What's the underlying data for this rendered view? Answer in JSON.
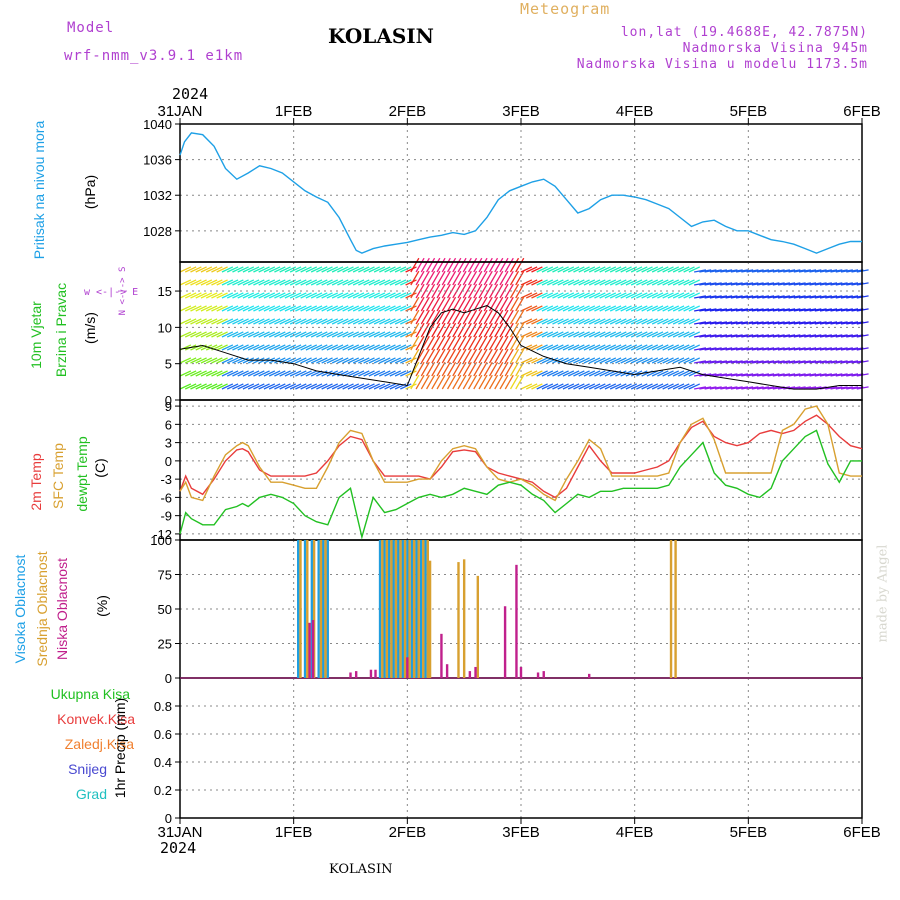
{
  "header": {
    "model_label": "Model",
    "model_name": "wrf-nmm_v3.9.1 e1km",
    "title": "KOLASIN",
    "meteogram": "Meteogram",
    "lonlat": "lon,lat (19.4688E, 42.7875N)",
    "elevation": "Nadmorska Visina 945m",
    "model_elevation": "Nadmorska Visina u modelu 1173.5m",
    "credit": "made by Angel"
  },
  "footer": {
    "station": "KOLASIN"
  },
  "colors": {
    "pressure": "#1ea0e6",
    "temp2m": "#e83c3c",
    "sfc_temp": "#d8a030",
    "dewpt": "#22c022",
    "high_cloud": "#1e9ee0",
    "mid_cloud": "#d8a030",
    "low_cloud": "#c0208c",
    "total_precip": "#22c022",
    "conv_precip": "#e83c3c",
    "frozen_precip": "#f08030",
    "snow": "#4848d0",
    "graupel": "#20c0c0",
    "model": "#b040d0",
    "meteogram": "#e0b060"
  },
  "time_axis": {
    "year": "2024",
    "labels": [
      "31JAN",
      "1FEB",
      "2FEB",
      "3FEB",
      "4FEB",
      "5FEB",
      "6FEB"
    ]
  },
  "panels": {
    "pressure": {
      "label": "Pritisak na nivou mora",
      "unit": "(hPa)"
    },
    "wind": {
      "label1": "10m Vjetar",
      "label2": "Brzina i Pravac",
      "unit": "(m/s)",
      "dir_labels": "w <-|-> E",
      "dir_vert": "N <-|-> S"
    },
    "temp": {
      "label1": "2m Temp",
      "label2": "SFC Temp",
      "label3": "dewpt Temp",
      "unit": "(C)"
    },
    "cloud": {
      "label1": "Visoka Oblacnost",
      "label2": "Srednja Oblacnost",
      "label3": "Niska Oblacnost",
      "unit": "(%)"
    },
    "precip": {
      "unit": "1hr Precip (mm)",
      "legend": [
        "Ukupna Kisa",
        "Konvek.Kisa",
        "Zaledj.Kisa",
        "Snijeg",
        "Grad"
      ]
    }
  },
  "chart_data": [
    {
      "type": "line",
      "name_key": "pressure",
      "ylim": [
        1024.5,
        1040
      ],
      "yticks": [
        1028,
        1032,
        1036,
        1040
      ],
      "x_days": [
        0,
        0.04,
        0.1,
        0.2,
        0.3,
        0.4,
        0.5,
        0.6,
        0.7,
        0.8,
        0.9,
        1.0,
        1.1,
        1.2,
        1.3,
        1.4,
        1.5,
        1.55,
        1.6,
        1.7,
        1.8,
        1.9,
        2.0,
        2.1,
        2.2,
        2.3,
        2.4,
        2.5,
        2.6,
        2.7,
        2.8,
        2.9,
        3.0,
        3.1,
        3.2,
        3.3,
        3.4,
        3.5,
        3.6,
        3.7,
        3.8,
        3.9,
        4.0,
        4.1,
        4.2,
        4.3,
        4.4,
        4.5,
        4.6,
        4.7,
        4.8,
        4.9,
        5.0,
        5.1,
        5.2,
        5.3,
        5.4,
        5.5,
        5.6,
        5.7,
        5.8,
        5.9,
        6.0
      ],
      "series": [
        {
          "values": [
            1036.5,
            1038.0,
            1039.0,
            1038.8,
            1037.5,
            1035.0,
            1033.8,
            1034.5,
            1035.3,
            1035.0,
            1034.5,
            1033.5,
            1032.5,
            1031.8,
            1031.2,
            1029.5,
            1027.0,
            1025.8,
            1025.5,
            1026.0,
            1026.3,
            1026.5,
            1026.7,
            1027.0,
            1027.3,
            1027.5,
            1027.8,
            1027.6,
            1028.0,
            1029.5,
            1031.5,
            1032.5,
            1033.0,
            1033.5,
            1033.8,
            1033.0,
            1031.5,
            1030.0,
            1030.5,
            1031.5,
            1032.0,
            1032.0,
            1031.8,
            1031.5,
            1031.0,
            1030.5,
            1029.5,
            1028.5,
            1029.0,
            1029.2,
            1028.5,
            1028.0,
            1028.0,
            1027.5,
            1027.0,
            1026.8,
            1026.5,
            1026.0,
            1025.5,
            1026.0,
            1026.5,
            1026.8,
            1026.8
          ]
        }
      ]
    },
    {
      "type": "line",
      "name_key": "wind_speed",
      "ylim": [
        0,
        19
      ],
      "yticks": [
        0,
        5,
        10,
        15
      ],
      "x_days": [
        0,
        0.2,
        0.4,
        0.6,
        0.8,
        1.0,
        1.2,
        1.4,
        1.6,
        1.8,
        2.0,
        2.1,
        2.2,
        2.3,
        2.4,
        2.5,
        2.6,
        2.7,
        2.8,
        2.9,
        3.0,
        3.2,
        3.4,
        3.6,
        3.8,
        4.0,
        4.2,
        4.4,
        4.6,
        4.8,
        5.0,
        5.2,
        5.4,
        5.6,
        5.8,
        6.0
      ],
      "series": [
        {
          "values": [
            7,
            7.5,
            6.5,
            5.5,
            5.5,
            5,
            4,
            3.5,
            3,
            2.5,
            2,
            6,
            10,
            12,
            12.5,
            12,
            12.5,
            13,
            12,
            10,
            7.5,
            6,
            5,
            4.5,
            4,
            3.5,
            4,
            4.5,
            3.5,
            3,
            2.5,
            2,
            1.5,
            1.5,
            2,
            2
          ]
        }
      ]
    },
    {
      "type": "line",
      "name_key": "temperature",
      "ylim": [
        -13,
        10
      ],
      "yticks": [
        -12,
        -9,
        -6,
        -3,
        0,
        3,
        6,
        9
      ],
      "x_days": [
        0,
        0.05,
        0.1,
        0.2,
        0.3,
        0.4,
        0.5,
        0.55,
        0.6,
        0.7,
        0.8,
        0.9,
        1.0,
        1.1,
        1.2,
        1.3,
        1.4,
        1.5,
        1.6,
        1.7,
        1.8,
        1.9,
        2.0,
        2.1,
        2.2,
        2.3,
        2.4,
        2.5,
        2.6,
        2.7,
        2.8,
        2.9,
        3.0,
        3.1,
        3.2,
        3.3,
        3.4,
        3.5,
        3.6,
        3.7,
        3.8,
        3.9,
        4.0,
        4.1,
        4.2,
        4.3,
        4.4,
        4.5,
        4.6,
        4.7,
        4.8,
        4.9,
        5.0,
        5.1,
        5.2,
        5.3,
        5.4,
        5.5,
        5.6,
        5.7,
        5.8,
        5.9,
        6.0
      ],
      "series": [
        {
          "name_key": "temp2m",
          "values": [
            -5,
            -2.5,
            -4.5,
            -5.5,
            -3,
            0,
            1.8,
            2,
            1.5,
            -1.5,
            -2.5,
            -2.5,
            -2.5,
            -2.5,
            -2,
            0,
            2.5,
            4,
            3.5,
            0,
            -2.5,
            -2.5,
            -2.5,
            -2.5,
            -3,
            -1,
            1.5,
            1.8,
            1.5,
            -1,
            -2,
            -2.5,
            -3,
            -3.5,
            -5,
            -6,
            -4.5,
            -1,
            2.5,
            0,
            -2,
            -2,
            -2,
            -1.5,
            -1,
            0,
            3,
            5.5,
            6.5,
            4,
            3,
            2.5,
            3,
            4.5,
            5,
            4.5,
            5,
            6.5,
            7.5,
            6,
            4,
            2.5,
            2
          ]
        },
        {
          "name_key": "sfc_temp",
          "values": [
            -5,
            -3.5,
            -6,
            -6.5,
            -2.5,
            1,
            2.5,
            3,
            2.5,
            -1,
            -3.5,
            -3.5,
            -4,
            -4.5,
            -4.5,
            -1,
            3,
            5,
            4.5,
            0,
            -3.5,
            -3.5,
            -3.5,
            -3,
            -3,
            0,
            2,
            2.5,
            2,
            -1,
            -3,
            -3.5,
            -3,
            -4,
            -5.5,
            -6.5,
            -3,
            0,
            3.5,
            2,
            -2.5,
            -2.5,
            -2.5,
            -2.5,
            -2.5,
            -2,
            3,
            6,
            7,
            3.5,
            -2,
            -2,
            -2,
            -2,
            -2,
            5,
            6,
            8.5,
            9,
            6,
            -2,
            -2.5,
            -2.5
          ]
        },
        {
          "name_key": "dewpt",
          "values": [
            -12,
            -8.5,
            -9.5,
            -10.5,
            -10.5,
            -8,
            -7.5,
            -7,
            -7.5,
            -6,
            -5.5,
            -6,
            -7,
            -9,
            -10,
            -10.5,
            -6,
            -4.5,
            -12.5,
            -6,
            -8.5,
            -8,
            -7,
            -6,
            -5.5,
            -6,
            -5.5,
            -4.5,
            -5,
            -5.5,
            -4,
            -3.5,
            -4,
            -5.5,
            -6.5,
            -8.5,
            -7,
            -5.5,
            -6,
            -5,
            -5,
            -4.5,
            -4.5,
            -4.5,
            -4.5,
            -4,
            -1,
            1,
            3,
            -2,
            -4,
            -4.5,
            -5.5,
            -6,
            -4.5,
            0,
            2,
            4,
            5,
            -0.5,
            -3.5,
            0,
            0
          ]
        }
      ]
    },
    {
      "type": "bar",
      "name_key": "cloud_cover",
      "ylim": [
        0,
        100
      ],
      "yticks": [
        0,
        25,
        50,
        75,
        100
      ],
      "series": [
        {
          "name_key": "high",
          "x_days": [
            1.04,
            1.1,
            1.16,
            1.22,
            1.26,
            1.3,
            1.76,
            1.8,
            1.84,
            1.88,
            1.92,
            1.96,
            2.0,
            2.04,
            2.08,
            2.12,
            2.16
          ],
          "values": [
            100,
            100,
            100,
            100,
            100,
            100,
            100,
            100,
            100,
            100,
            100,
            100,
            100,
            100,
            100,
            100,
            100
          ]
        },
        {
          "name_key": "mid",
          "x_days": [
            1.06,
            1.12,
            1.18,
            1.24,
            1.28,
            1.78,
            1.82,
            1.86,
            1.9,
            1.94,
            1.98,
            2.02,
            2.06,
            2.1,
            2.14,
            2.18,
            2.2,
            2.45,
            2.5,
            2.62,
            4.32,
            4.36
          ],
          "values": [
            100,
            100,
            100,
            100,
            100,
            100,
            100,
            100,
            100,
            100,
            100,
            100,
            100,
            100,
            100,
            100,
            85,
            84,
            86,
            74,
            100,
            100
          ]
        },
        {
          "name_key": "low",
          "x_days": [
            1.14,
            1.17,
            1.5,
            1.55,
            1.68,
            1.72,
            2.0,
            2.3,
            2.35,
            2.55,
            2.6,
            2.86,
            2.96,
            3.0,
            3.15,
            3.2,
            3.6
          ],
          "values": [
            40,
            42,
            4,
            5,
            6,
            6,
            15,
            32,
            10,
            5,
            8,
            52,
            82,
            8,
            4,
            5,
            3
          ]
        }
      ]
    },
    {
      "type": "bar",
      "name_key": "precipitation",
      "ylim": [
        0,
        1
      ],
      "yticks": [
        0,
        0.2,
        0.4,
        0.6,
        0.8
      ],
      "series": []
    }
  ]
}
